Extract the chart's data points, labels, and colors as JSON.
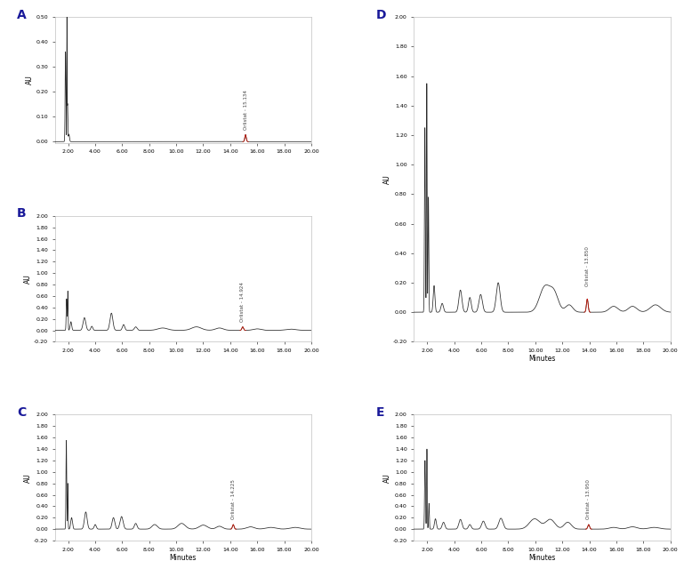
{
  "panels": {
    "A": {
      "label": "A",
      "ylim": [
        -0.005,
        0.5
      ],
      "yticks": [
        0.0,
        0.1,
        0.2,
        0.3,
        0.4,
        0.5
      ],
      "ytick_labels": [
        "0.00",
        "0.10",
        "0.20",
        "0.30",
        "0.40",
        "0.50"
      ],
      "annotation": "Orlistat - 15.134",
      "ann_x": 15.134,
      "orlistat_region": [
        14.92,
        15.35
      ],
      "orlistat_peak_y": 0.028
    },
    "B": {
      "label": "B",
      "ylim": [
        -0.2,
        2.0
      ],
      "yticks": [
        -0.2,
        0.0,
        0.2,
        0.4,
        0.6,
        0.8,
        1.0,
        1.2,
        1.4,
        1.6,
        1.8,
        2.0
      ],
      "ytick_labels": [
        "-0.20",
        "0.00",
        "0.20",
        "0.40",
        "0.60",
        "0.80",
        "1.00",
        "1.20",
        "1.40",
        "1.60",
        "1.80",
        "2.00"
      ],
      "annotation": "Orlistat - 14.924",
      "ann_x": 14.924,
      "orlistat_region": [
        14.72,
        15.15
      ],
      "orlistat_peak_y": 0.06
    },
    "C": {
      "label": "C",
      "ylim": [
        -0.2,
        2.0
      ],
      "yticks": [
        -0.2,
        0.0,
        0.2,
        0.4,
        0.6,
        0.8,
        1.0,
        1.2,
        1.4,
        1.6,
        1.8,
        2.0
      ],
      "ytick_labels": [
        "-0.20",
        "0.00",
        "0.20",
        "0.40",
        "0.60",
        "0.80",
        "1.00",
        "1.20",
        "1.40",
        "1.60",
        "1.80",
        "2.00"
      ],
      "annotation": "Orlistat - 14.225",
      "ann_x": 14.225,
      "orlistat_region": [
        14.02,
        14.45
      ],
      "orlistat_peak_y": 0.08
    },
    "D": {
      "label": "D",
      "ylim": [
        -0.2,
        2.0
      ],
      "yticks": [
        -0.2,
        0.0,
        0.2,
        0.4,
        0.6,
        0.8,
        1.0,
        1.2,
        1.4,
        1.6,
        1.8,
        2.0
      ],
      "ytick_labels": [
        "-0.20",
        "0.00",
        "0.20",
        "0.40",
        "0.60",
        "0.80",
        "1.00",
        "1.20",
        "1.40",
        "1.60",
        "1.80",
        "2.00"
      ],
      "annotation": "Orlistat - 13.850",
      "ann_x": 13.85,
      "orlistat_region": [
        13.62,
        14.08
      ],
      "orlistat_peak_y": 0.09
    },
    "E": {
      "label": "E",
      "ylim": [
        -0.2,
        2.0
      ],
      "yticks": [
        -0.2,
        0.0,
        0.2,
        0.4,
        0.6,
        0.8,
        1.0,
        1.2,
        1.4,
        1.6,
        1.8,
        2.0
      ],
      "ytick_labels": [
        "-0.20",
        "0.00",
        "0.20",
        "0.40",
        "0.60",
        "0.80",
        "1.00",
        "1.20",
        "1.40",
        "1.60",
        "1.80",
        "2.00"
      ],
      "annotation": "Orlistat - 13.950",
      "ann_x": 13.95,
      "orlistat_region": [
        13.72,
        14.18
      ],
      "orlistat_peak_y": 0.08
    }
  },
  "xlim": [
    1.0,
    20.0
  ],
  "xticks": [
    2.0,
    4.0,
    6.0,
    8.0,
    10.0,
    12.0,
    14.0,
    16.0,
    18.0,
    20.0
  ],
  "xtick_labels": [
    "2.00",
    "4.00",
    "6.00",
    "8.00",
    "10.00",
    "12.00",
    "14.00",
    "16.00",
    "18.00",
    "20.00"
  ],
  "xlabel": "Minutes",
  "ylabel": "AU",
  "line_color": "#2a2a2a",
  "orlistat_color": "#cc1100",
  "panel_label_color": "#1a1a9a",
  "bg_color": "#ffffff",
  "spine_color": "#c0c0c0",
  "tick_label_size": 4.5,
  "axis_label_size": 5.5,
  "annotation_size": 4.0,
  "line_width": 0.55
}
